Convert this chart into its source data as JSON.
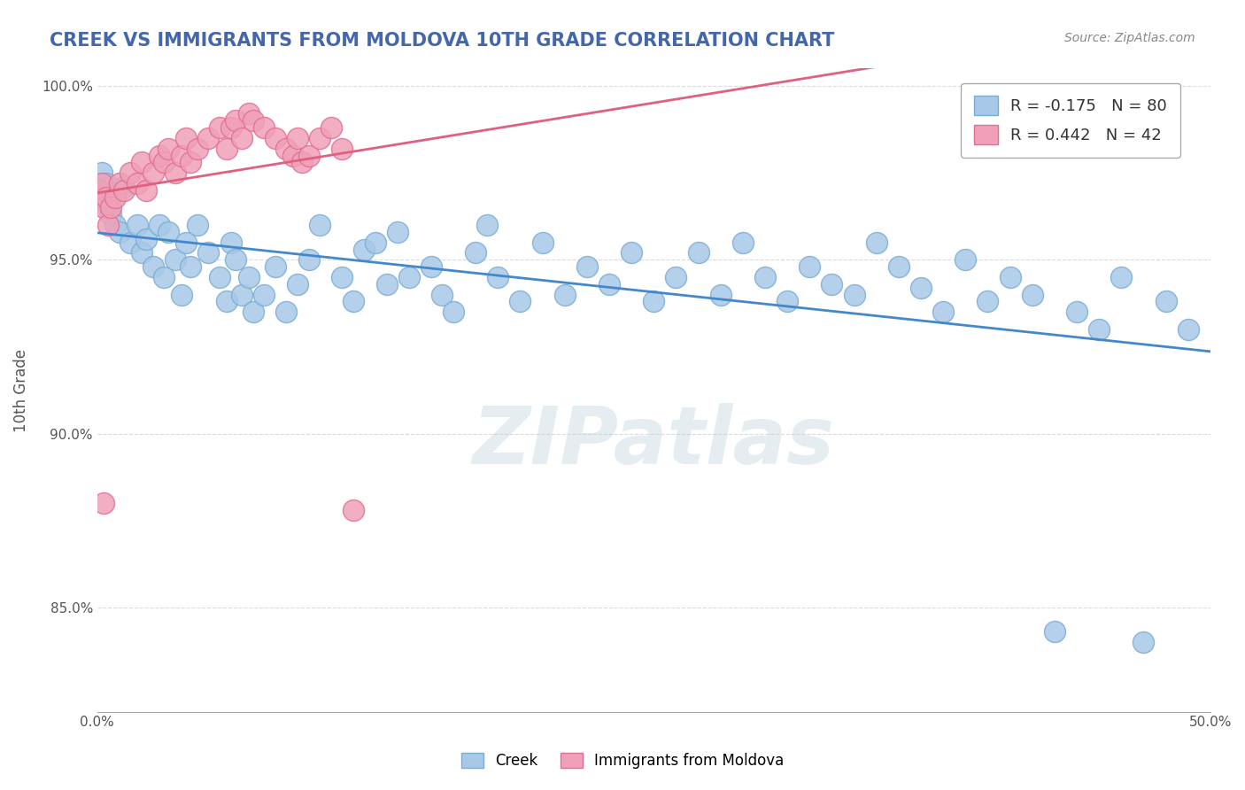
{
  "title": "CREEK VS IMMIGRANTS FROM MOLDOVA 10TH GRADE CORRELATION CHART",
  "source": "Source: ZipAtlas.com",
  "ylabel": "10th Grade",
  "xlim": [
    0.0,
    0.5
  ],
  "ylim": [
    0.82,
    1.005
  ],
  "xticks": [
    0.0,
    0.1,
    0.2,
    0.3,
    0.4,
    0.5
  ],
  "ytick_vals": [
    0.85,
    0.9,
    0.95,
    1.0
  ],
  "ytick_labels": [
    "85.0%",
    "90.0%",
    "95.0%",
    "100.0%"
  ],
  "creek_color": "#a8c8e8",
  "creek_edge": "#7aadd4",
  "moldova_color": "#f0a0b8",
  "moldova_edge": "#e07090",
  "creek_line_color": "#4488cc",
  "moldova_line_color": "#e06080",
  "watermark": "ZIPatlas",
  "background_color": "#ffffff",
  "grid_color": "#cccccc",
  "title_color": "#4466aa",
  "legend_labels": [
    "R = -0.175   N = 80",
    "R = 0.442   N = 42"
  ],
  "bottom_legend_labels": [
    "Creek",
    "Immigrants from Moldova"
  ],
  "creek_scatter": [
    [
      0.001,
      0.97
    ],
    [
      0.002,
      0.975
    ],
    [
      0.003,
      0.968
    ],
    [
      0.004,
      0.972
    ],
    [
      0.005,
      0.965
    ],
    [
      0.006,
      0.963
    ],
    [
      0.008,
      0.96
    ],
    [
      0.01,
      0.958
    ],
    [
      0.012,
      0.971
    ],
    [
      0.015,
      0.955
    ],
    [
      0.018,
      0.96
    ],
    [
      0.02,
      0.952
    ],
    [
      0.022,
      0.956
    ],
    [
      0.025,
      0.948
    ],
    [
      0.028,
      0.96
    ],
    [
      0.03,
      0.945
    ],
    [
      0.032,
      0.958
    ],
    [
      0.035,
      0.95
    ],
    [
      0.038,
      0.94
    ],
    [
      0.04,
      0.955
    ],
    [
      0.042,
      0.948
    ],
    [
      0.045,
      0.96
    ],
    [
      0.05,
      0.952
    ],
    [
      0.055,
      0.945
    ],
    [
      0.058,
      0.938
    ],
    [
      0.06,
      0.955
    ],
    [
      0.062,
      0.95
    ],
    [
      0.065,
      0.94
    ],
    [
      0.068,
      0.945
    ],
    [
      0.07,
      0.935
    ],
    [
      0.075,
      0.94
    ],
    [
      0.08,
      0.948
    ],
    [
      0.085,
      0.935
    ],
    [
      0.09,
      0.943
    ],
    [
      0.095,
      0.95
    ],
    [
      0.1,
      0.96
    ],
    [
      0.11,
      0.945
    ],
    [
      0.115,
      0.938
    ],
    [
      0.12,
      0.953
    ],
    [
      0.125,
      0.955
    ],
    [
      0.13,
      0.943
    ],
    [
      0.135,
      0.958
    ],
    [
      0.14,
      0.945
    ],
    [
      0.15,
      0.948
    ],
    [
      0.155,
      0.94
    ],
    [
      0.16,
      0.935
    ],
    [
      0.17,
      0.952
    ],
    [
      0.175,
      0.96
    ],
    [
      0.18,
      0.945
    ],
    [
      0.19,
      0.938
    ],
    [
      0.2,
      0.955
    ],
    [
      0.21,
      0.94
    ],
    [
      0.22,
      0.948
    ],
    [
      0.23,
      0.943
    ],
    [
      0.24,
      0.952
    ],
    [
      0.25,
      0.938
    ],
    [
      0.26,
      0.945
    ],
    [
      0.27,
      0.952
    ],
    [
      0.28,
      0.94
    ],
    [
      0.29,
      0.955
    ],
    [
      0.3,
      0.945
    ],
    [
      0.31,
      0.938
    ],
    [
      0.32,
      0.948
    ],
    [
      0.33,
      0.943
    ],
    [
      0.34,
      0.94
    ],
    [
      0.35,
      0.955
    ],
    [
      0.36,
      0.948
    ],
    [
      0.37,
      0.942
    ],
    [
      0.38,
      0.935
    ],
    [
      0.39,
      0.95
    ],
    [
      0.4,
      0.938
    ],
    [
      0.41,
      0.945
    ],
    [
      0.42,
      0.94
    ],
    [
      0.43,
      0.843
    ],
    [
      0.44,
      0.935
    ],
    [
      0.45,
      0.93
    ],
    [
      0.46,
      0.945
    ],
    [
      0.47,
      0.84
    ],
    [
      0.48,
      0.938
    ],
    [
      0.49,
      0.93
    ]
  ],
  "moldova_scatter": [
    [
      0.001,
      0.97
    ],
    [
      0.002,
      0.972
    ],
    [
      0.003,
      0.965
    ],
    [
      0.004,
      0.968
    ],
    [
      0.005,
      0.96
    ],
    [
      0.006,
      0.965
    ],
    [
      0.008,
      0.968
    ],
    [
      0.01,
      0.972
    ],
    [
      0.012,
      0.97
    ],
    [
      0.015,
      0.975
    ],
    [
      0.018,
      0.972
    ],
    [
      0.02,
      0.978
    ],
    [
      0.022,
      0.97
    ],
    [
      0.025,
      0.975
    ],
    [
      0.028,
      0.98
    ],
    [
      0.03,
      0.978
    ],
    [
      0.032,
      0.982
    ],
    [
      0.035,
      0.975
    ],
    [
      0.038,
      0.98
    ],
    [
      0.04,
      0.985
    ],
    [
      0.042,
      0.978
    ],
    [
      0.045,
      0.982
    ],
    [
      0.05,
      0.985
    ],
    [
      0.055,
      0.988
    ],
    [
      0.058,
      0.982
    ],
    [
      0.06,
      0.988
    ],
    [
      0.062,
      0.99
    ],
    [
      0.065,
      0.985
    ],
    [
      0.068,
      0.992
    ],
    [
      0.07,
      0.99
    ],
    [
      0.075,
      0.988
    ],
    [
      0.08,
      0.985
    ],
    [
      0.085,
      0.982
    ],
    [
      0.088,
      0.98
    ],
    [
      0.09,
      0.985
    ],
    [
      0.092,
      0.978
    ],
    [
      0.095,
      0.98
    ],
    [
      0.1,
      0.985
    ],
    [
      0.105,
      0.988
    ],
    [
      0.11,
      0.982
    ],
    [
      0.115,
      0.878
    ],
    [
      0.003,
      0.88
    ]
  ]
}
